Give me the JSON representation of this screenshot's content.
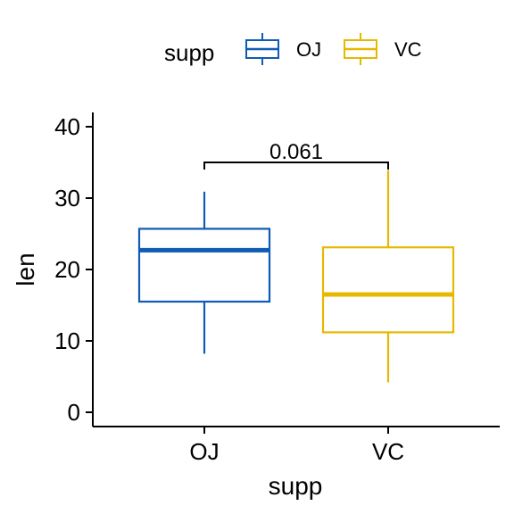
{
  "chart_data": {
    "type": "boxplot",
    "xlabel": "supp",
    "ylabel": "len",
    "ylim": [
      -2,
      42
    ],
    "yticks": [
      0,
      10,
      20,
      30,
      40
    ],
    "grid": false,
    "legend": {
      "title": "supp",
      "placement": "top",
      "entries": [
        {
          "label": "OJ",
          "color": "#0F5BB5"
        },
        {
          "label": "VC",
          "color": "#E7B800"
        }
      ]
    },
    "categories": [
      "OJ",
      "VC"
    ],
    "boxes": [
      {
        "name": "OJ",
        "color": "#0F5BB5",
        "whisker_low": 8.2,
        "q1": 15.5,
        "median": 22.7,
        "q3": 25.7,
        "whisker_high": 30.9
      },
      {
        "name": "VC",
        "color": "#E7B800",
        "whisker_low": 4.2,
        "q1": 11.2,
        "median": 16.5,
        "q3": 23.1,
        "whisker_high": 33.9
      }
    ],
    "comparison": {
      "groups": [
        "OJ",
        "VC"
      ],
      "label": "0.061",
      "y": 35
    }
  }
}
